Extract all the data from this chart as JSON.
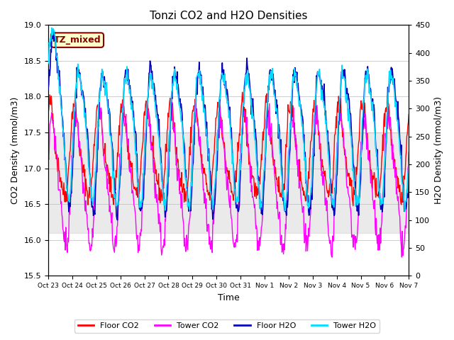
{
  "title": "Tonzi CO2 and H2O Densities",
  "xlabel": "Time",
  "ylabel_left": "CO2 Density (mmol/m3)",
  "ylabel_right": "H2O Density (mmol/m3)",
  "ylim_left": [
    15.5,
    19.0
  ],
  "ylim_right": [
    0,
    450
  ],
  "yticks_left": [
    15.5,
    16.0,
    16.5,
    17.0,
    17.5,
    18.0,
    18.5,
    19.0
  ],
  "yticks_right": [
    0,
    50,
    100,
    150,
    200,
    250,
    300,
    350,
    400,
    450
  ],
  "xtick_labels": [
    "Oct 23",
    "Oct 24",
    "Oct 25",
    "Oct 26",
    "Oct 27",
    "Oct 28",
    "Oct 29",
    "Oct 30",
    "Oct 31",
    "Nov 1",
    "Nov 2",
    "Nov 3",
    "Nov 4",
    "Nov 5",
    "Nov 6",
    "Nov 7"
  ],
  "colors": {
    "floor_co2": "#FF0000",
    "tower_co2": "#FF00FF",
    "floor_h2o": "#0000BB",
    "tower_h2o": "#00DDFF"
  },
  "legend_labels": [
    "Floor CO2",
    "Tower CO2",
    "Floor H2O",
    "Tower H2O"
  ],
  "annotation_text": "TZ_mixed",
  "annotation_bg": "#FFFFCC",
  "annotation_ec": "#880000",
  "shading_color": "#CCCCCC",
  "shading_alpha": 0.4,
  "shading_ylim": [
    16.1,
    17.5
  ],
  "n_days": 15,
  "seed": 42
}
